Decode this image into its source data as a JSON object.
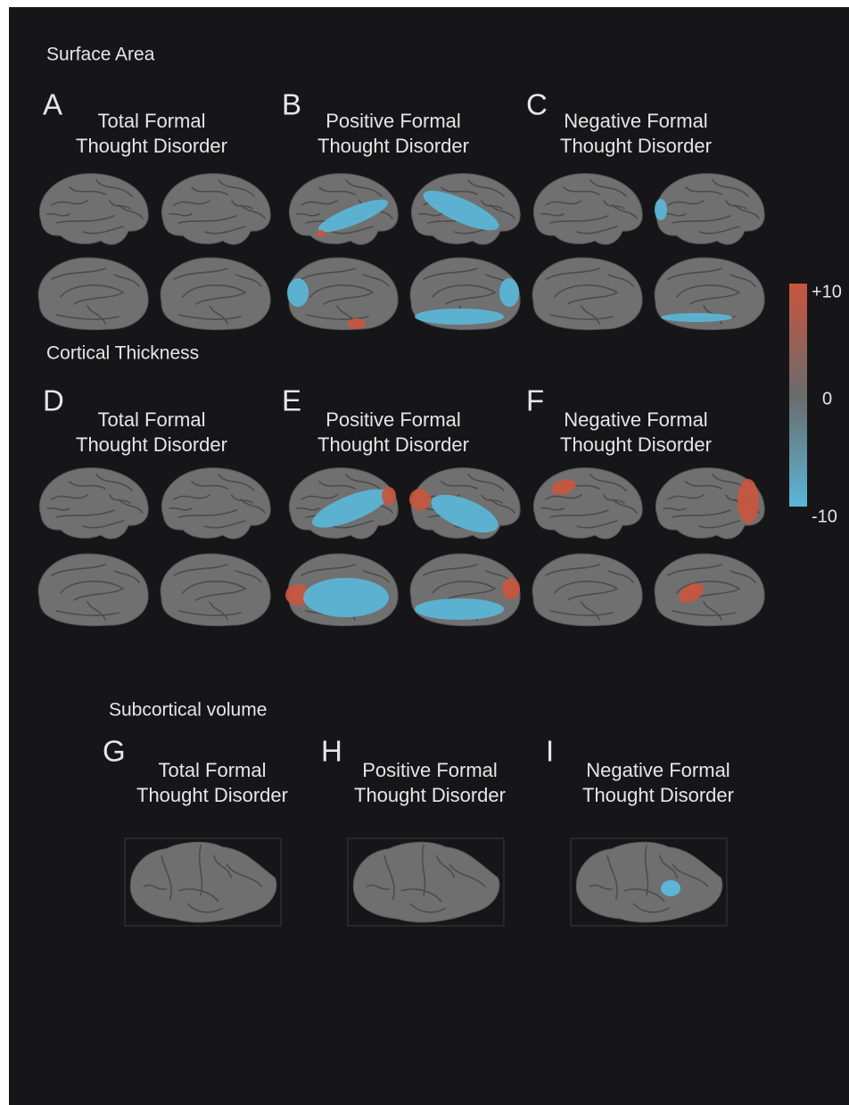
{
  "sections": [
    {
      "title": "Surface Area",
      "panels": [
        {
          "letter": "A",
          "title_lines": [
            "Total Formal",
            "Thought Disorder"
          ]
        },
        {
          "letter": "B",
          "title_lines": [
            "Positive Formal",
            "Thought Disorder"
          ]
        },
        {
          "letter": "C",
          "title_lines": [
            "Negative Formal",
            "Thought Disorder"
          ]
        }
      ]
    },
    {
      "title": "Cortical Thickness",
      "panels": [
        {
          "letter": "D",
          "title_lines": [
            "Total Formal",
            "Thought Disorder"
          ]
        },
        {
          "letter": "E",
          "title_lines": [
            "Positive Formal",
            "Thought Disorder"
          ]
        },
        {
          "letter": "F",
          "title_lines": [
            "Negative Formal",
            "Thought Disorder"
          ]
        }
      ]
    },
    {
      "title": "Subcortical volume",
      "panels": [
        {
          "letter": "G",
          "title_lines": [
            "Total Formal",
            "Thought Disorder"
          ]
        },
        {
          "letter": "H",
          "title_lines": [
            "Positive Formal",
            "Thought Disorder"
          ]
        },
        {
          "letter": "I",
          "title_lines": [
            "Negative Formal",
            "Thought Disorder"
          ]
        }
      ]
    }
  ],
  "colorbar": {
    "labels": [
      "+10",
      "0",
      "-10"
    ]
  }
}
